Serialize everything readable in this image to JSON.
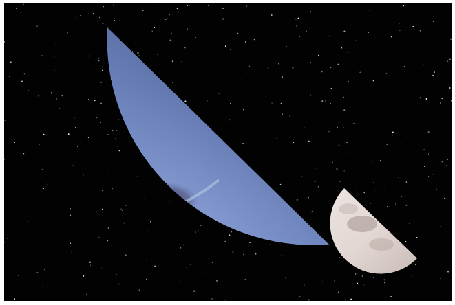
{
  "scene": {
    "subject": "planet-and-moon",
    "colors": {
      "space": "#020203",
      "planet_lit": "#8ea3d6",
      "planet_mid": "#6f86c0",
      "planet_dark": "#1a2238",
      "storm": "#4a4670",
      "storm_streak": "#b9d8e6",
      "moon_lit": "#ece6e4",
      "moon_shadow": "#8a7d7a"
    }
  }
}
